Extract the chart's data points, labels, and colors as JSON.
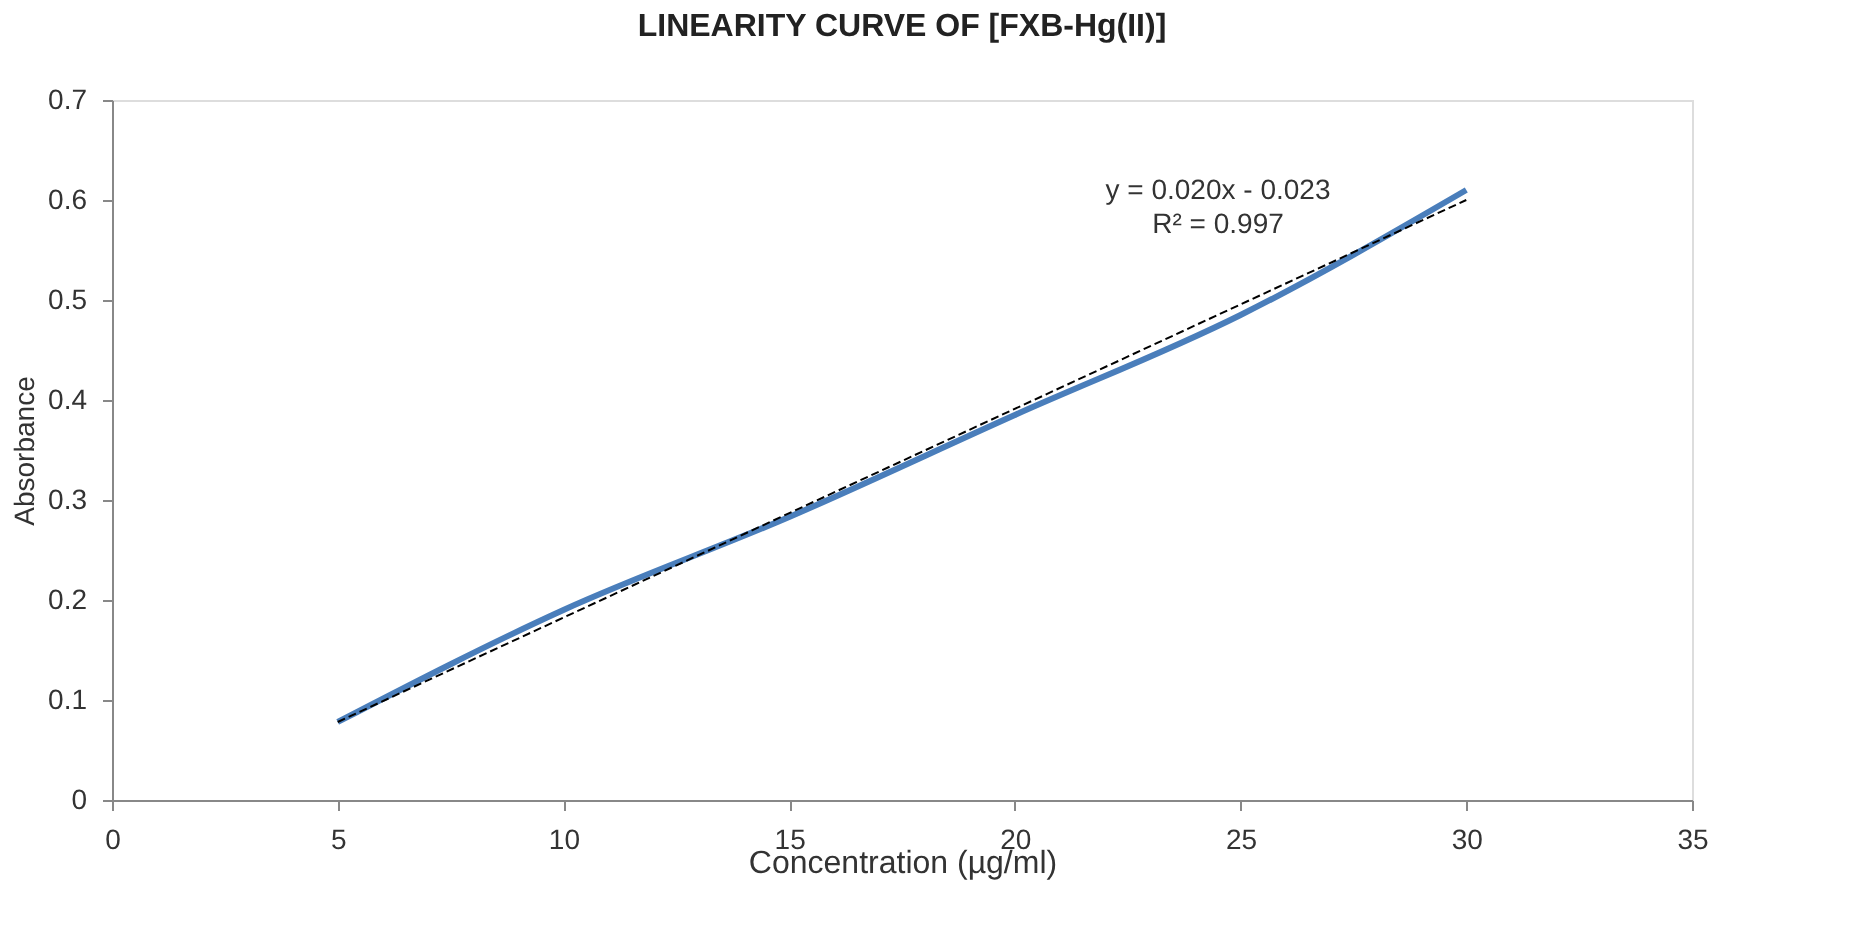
{
  "chart_data": {
    "type": "line",
    "title": "LINEARITY CURVE OF [FXB-Hg(II)]",
    "xlabel": "Concentration (µg/ml)",
    "ylabel": "Absorbance",
    "x": [
      5,
      10,
      15,
      20,
      25,
      30
    ],
    "series": [
      {
        "color": "#4a7ebb",
        "values": [
          0.078,
          0.19,
          0.283,
          0.385,
          0.485,
          0.61
        ],
        "line_style": "solid"
      },
      {
        "type": "line",
        "x": [
          5,
          30
        ],
        "color": "#000000",
        "values": [
          0.078,
          0.6
        ],
        "line_style": "dashed"
      }
    ],
    "annotations": [
      "y = 0.020x - 0.023",
      "R² = 0.997"
    ],
    "xlim": [
      0,
      35
    ],
    "xticks": [
      0,
      5,
      10,
      15,
      20,
      25,
      30,
      35
    ],
    "ylim": [
      0,
      0.7
    ],
    "yticks": [
      0,
      0.1,
      0.2,
      0.3,
      0.4,
      0.5,
      0.6,
      0.7
    ],
    "grid": false,
    "marker": "none"
  }
}
